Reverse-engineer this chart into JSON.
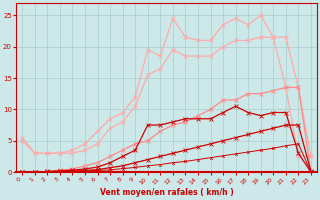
{
  "x": [
    0,
    1,
    2,
    3,
    4,
    5,
    6,
    7,
    8,
    9,
    10,
    11,
    12,
    13,
    14,
    15,
    16,
    17,
    18,
    19,
    20,
    21,
    22,
    23
  ],
  "line_pink_upper": [
    5.5,
    3.0,
    3.0,
    3.0,
    3.5,
    4.5,
    6.5,
    8.5,
    9.5,
    12.0,
    19.5,
    18.5,
    24.5,
    21.5,
    21.0,
    21.0,
    23.5,
    24.5,
    23.5,
    25.0,
    21.5,
    13.5,
    2.5,
    2.5
  ],
  "line_pink_lower": [
    5.0,
    3.0,
    3.0,
    3.0,
    3.0,
    3.5,
    4.5,
    7.0,
    8.0,
    10.5,
    15.5,
    16.5,
    19.5,
    18.5,
    18.5,
    18.5,
    20.0,
    21.0,
    21.0,
    21.5,
    21.5,
    21.5,
    13.5,
    2.5
  ],
  "line_med_upper": [
    0.0,
    0.0,
    0.1,
    0.3,
    0.5,
    1.0,
    1.5,
    2.5,
    3.5,
    4.5,
    5.0,
    6.5,
    7.5,
    8.0,
    9.0,
    10.0,
    11.5,
    11.5,
    12.5,
    12.5,
    13.0,
    13.5,
    13.5,
    0.0
  ],
  "line_dark_upper": [
    0.0,
    0.0,
    0.1,
    0.2,
    0.3,
    0.5,
    0.8,
    1.5,
    2.5,
    3.5,
    7.5,
    7.5,
    8.0,
    8.5,
    8.5,
    8.5,
    9.5,
    10.5,
    9.5,
    9.0,
    9.5,
    9.5,
    3.0,
    0.0
  ],
  "line_dark_lower": [
    0.0,
    0.0,
    0.05,
    0.1,
    0.15,
    0.25,
    0.4,
    0.7,
    1.0,
    1.5,
    2.0,
    2.5,
    3.0,
    3.5,
    4.0,
    4.5,
    5.0,
    5.5,
    6.0,
    6.5,
    7.0,
    7.5,
    7.5,
    0.1
  ],
  "line_thin_base": [
    0.0,
    0.0,
    0.02,
    0.05,
    0.1,
    0.15,
    0.25,
    0.35,
    0.55,
    0.75,
    1.0,
    1.2,
    1.5,
    1.7,
    2.0,
    2.3,
    2.6,
    2.9,
    3.2,
    3.5,
    3.8,
    4.2,
    4.5,
    0.0
  ],
  "bg_color": "#cce8e8",
  "grid_color": "#aacccc",
  "color_light_pink": "#ffaaaa",
  "color_med_pink": "#ff8888",
  "color_dark_red": "#cc0000",
  "color_thin_red": "#cc0000",
  "xlabel": "Vent moyen/en rafales ( km/h )",
  "ylim": [
    0,
    27
  ],
  "xlim": [
    -0.5,
    23.5
  ],
  "yticks": [
    0,
    5,
    10,
    15,
    20,
    25
  ],
  "xticks": [
    0,
    1,
    2,
    3,
    4,
    5,
    6,
    7,
    8,
    9,
    10,
    11,
    12,
    13,
    14,
    15,
    16,
    17,
    18,
    19,
    20,
    21,
    22,
    23
  ]
}
